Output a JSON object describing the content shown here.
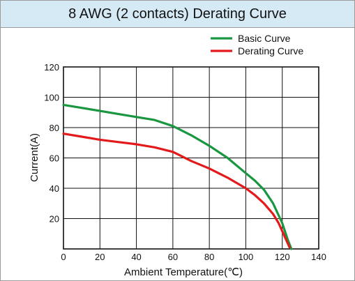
{
  "title": "8 AWG (2 contacts) Derating Curve",
  "chart_data": {
    "type": "line",
    "title": "8 AWG (2 contacts) Derating Curve",
    "xlabel": "Ambient Temperature(℃)",
    "ylabel": "Current(A)",
    "xlim": [
      0,
      140
    ],
    "ylim": [
      0,
      120
    ],
    "xticks": [
      0,
      20,
      40,
      60,
      80,
      100,
      120,
      140
    ],
    "yticks": [
      20,
      40,
      60,
      80,
      100,
      120
    ],
    "grid": true,
    "legend_position": "top-right",
    "series": [
      {
        "name": "Basic Curve",
        "color": "#1a9641",
        "x": [
          0,
          10,
          20,
          30,
          40,
          50,
          60,
          70,
          80,
          90,
          100,
          105,
          110,
          115,
          120,
          123,
          125
        ],
        "y": [
          95,
          93,
          91,
          89,
          87,
          85,
          81,
          75,
          68,
          60,
          50,
          45,
          39,
          30,
          17,
          6,
          0
        ]
      },
      {
        "name": "Derating Curve",
        "color": "#e31a1c",
        "x": [
          0,
          10,
          20,
          30,
          40,
          50,
          60,
          70,
          80,
          90,
          100,
          105,
          110,
          115,
          118,
          121,
          124
        ],
        "y": [
          76,
          74,
          72,
          70.5,
          69,
          67,
          64,
          58,
          53,
          47,
          40,
          35.5,
          30,
          23,
          17,
          9,
          1
        ]
      }
    ]
  }
}
